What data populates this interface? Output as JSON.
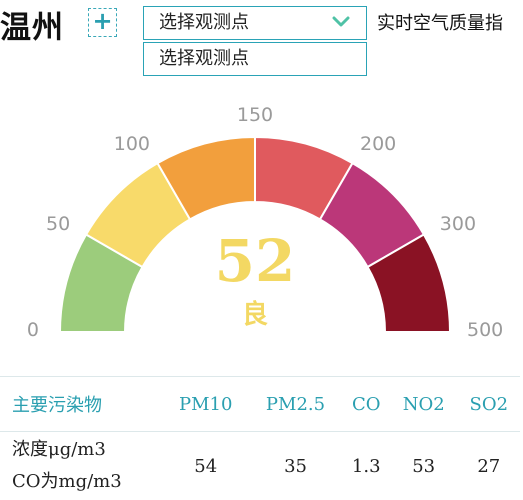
{
  "header": {
    "city": "温州",
    "add_icon": "plus-icon",
    "realtime_label": "实时空气质量指"
  },
  "station": {
    "selected": "选择观测点",
    "options": [
      "选择观测点"
    ],
    "chevron_icon": "chevron-down-icon"
  },
  "gauge": {
    "tick_labels": [
      "0",
      "50",
      "100",
      "150",
      "200",
      "300",
      "500"
    ],
    "bands": [
      {
        "from": "0",
        "to": "50",
        "color": "#9ccc7c"
      },
      {
        "from": "50",
        "to": "100",
        "color": "#f8da6a"
      },
      {
        "from": "100",
        "to": "150",
        "color": "#f29f3d"
      },
      {
        "from": "150",
        "to": "200",
        "color": "#e05a5e"
      },
      {
        "from": "200",
        "to": "300",
        "color": "#bb3779"
      },
      {
        "from": "300",
        "to": "500",
        "color": "#8a1224"
      }
    ],
    "aqi_value": "52",
    "aqi_level": "良",
    "value_color": "#f3d863"
  },
  "table": {
    "header_label": "主要污染物",
    "pollutants": [
      "PM10",
      "PM2.5",
      "CO",
      "NO2",
      "SO2"
    ],
    "unit_line1": "浓度μg/m3",
    "unit_line2": "CO为mg/m3",
    "values": [
      "54",
      "35",
      "1.3",
      "53",
      "27"
    ],
    "accent_color": "#2a9fb0"
  }
}
